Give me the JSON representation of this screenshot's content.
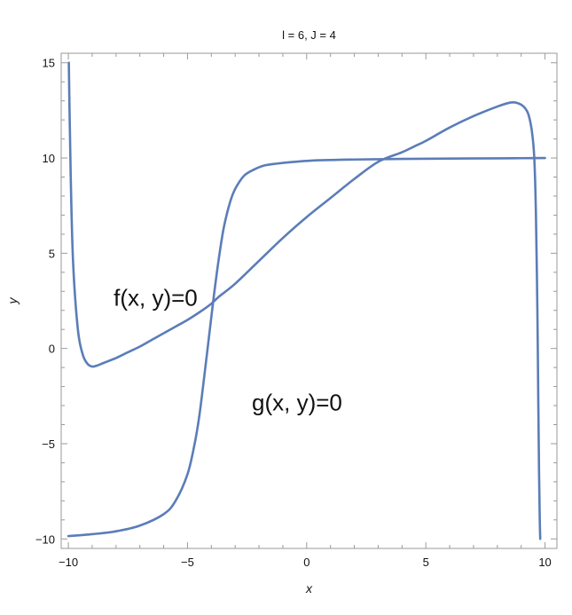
{
  "chart_data": {
    "type": "line",
    "title": "l = 6, J = 4",
    "xlabel": "x",
    "ylabel": "y",
    "xlim": [
      -10.3,
      10.5
    ],
    "ylim": [
      -10.5,
      15.5
    ],
    "x_ticks": [
      -10,
      -5,
      0,
      5,
      10
    ],
    "x_tick_labels": [
      "−10",
      "−5",
      "0",
      "5",
      "10"
    ],
    "y_ticks": [
      -10,
      -5,
      0,
      5,
      10,
      15
    ],
    "y_tick_labels": [
      "−10",
      "−5",
      "0",
      "5",
      "10",
      "15"
    ],
    "grid": false,
    "frame": true,
    "line_color": "#5b7db8",
    "series": [
      {
        "name": "",
        "x": [
          -9.98,
          -9.95,
          -9.9,
          -9.8,
          -9.6,
          -9.4,
          -9.2,
          -9.0,
          -8.8,
          -8.5,
          -8.0,
          -7.5,
          -7.0,
          -6.5,
          -6.0,
          -5.5,
          -5.0,
          -4.5,
          -4.0,
          -3.7,
          -3.0,
          -2.0,
          -1.0,
          0.0,
          1.0,
          2.0,
          3.0,
          4.0,
          4.5,
          5.0,
          6.0,
          7.0,
          8.0,
          8.5,
          8.8,
          9.1,
          9.3,
          9.45,
          9.55,
          9.62,
          9.68,
          9.72,
          9.75,
          9.78,
          9.8
        ],
        "y": [
          15.0,
          12.5,
          9.0,
          4.5,
          1.0,
          -0.3,
          -0.8,
          -0.95,
          -0.9,
          -0.75,
          -0.5,
          -0.2,
          0.1,
          0.45,
          0.8,
          1.15,
          1.5,
          1.9,
          2.35,
          2.7,
          3.4,
          4.6,
          5.8,
          6.9,
          7.9,
          8.9,
          9.8,
          10.3,
          10.6,
          10.9,
          11.6,
          12.2,
          12.7,
          12.9,
          12.9,
          12.7,
          12.3,
          11.4,
          10.0,
          7.0,
          2.0,
          -3.0,
          -6.5,
          -9.0,
          -10.0
        ]
      },
      {
        "name": "",
        "x": [
          -10.0,
          -9.0,
          -8.0,
          -7.0,
          -6.0,
          -5.5,
          -5.0,
          -4.7,
          -4.5,
          -4.3,
          -4.1,
          -3.9,
          -3.7,
          -3.5,
          -3.3,
          -3.1,
          -2.9,
          -2.6,
          -2.2,
          -1.8,
          -1.3,
          -0.5,
          0.5,
          2.0,
          4.0,
          6.0,
          8.0,
          9.0,
          10.0
        ],
        "y": [
          -9.85,
          -9.75,
          -9.6,
          -9.3,
          -8.7,
          -8.0,
          -6.6,
          -5.0,
          -3.5,
          -1.5,
          0.6,
          2.7,
          4.6,
          6.2,
          7.3,
          8.1,
          8.6,
          9.1,
          9.4,
          9.6,
          9.7,
          9.8,
          9.88,
          9.92,
          9.95,
          9.97,
          9.98,
          9.99,
          10.0
        ]
      }
    ],
    "annotations": [
      {
        "text": "f(x, y)=0",
        "x": -8.1,
        "y": 2.7
      },
      {
        "text": "g(x, y)=0",
        "x": -2.3,
        "y": -2.8
      }
    ]
  }
}
